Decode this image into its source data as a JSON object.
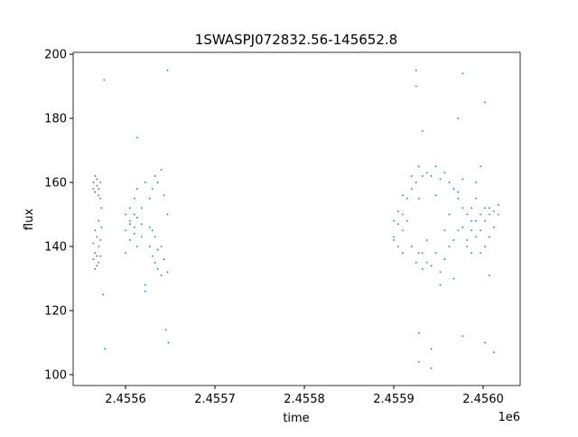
{
  "chart_data": {
    "type": "scatter",
    "title": "1SWASPJ072832.56-145652.8",
    "x_label": "time",
    "y_label": "flux",
    "x_offset_label": "1e6",
    "color": "#1f77b4",
    "x": [
      2455564,
      2455564,
      2455564,
      2455564,
      2455566,
      2455566,
      2455566,
      2455566,
      2455566,
      2455568,
      2455568,
      2455568,
      2455568,
      2455568,
      2455570,
      2455570,
      2455570,
      2455570,
      2455570,
      2455572,
      2455572,
      2455572,
      2455572,
      2455573,
      2455573,
      2455577,
      2455576,
      2455575,
      2455600,
      2455600,
      2455600,
      2455605,
      2455605,
      2455605,
      2455605,
      2455610,
      2455610,
      2455610,
      2455610,
      2455613,
      2455613,
      2455613,
      2455613,
      2455618,
      2455618,
      2455618,
      2455622,
      2455622,
      2455622,
      2455627,
      2455627,
      2455627,
      2455630,
      2455630,
      2455630,
      2455633,
      2455633,
      2455633,
      2455636,
      2455636,
      2455636,
      2455640,
      2455640,
      2455640,
      2455643,
      2455643,
      2455647,
      2455647,
      2455647,
      2455648,
      2455645,
      2455900,
      2455900,
      2455900,
      2455905,
      2455905,
      2455905,
      2455910,
      2455910,
      2455910,
      2455910,
      2455915,
      2455915,
      2455920,
      2455920,
      2455920,
      2455925,
      2455925,
      2455925,
      2455925,
      2455928,
      2455928,
      2455928,
      2455928,
      2455928,
      2455932,
      2455932,
      2455932,
      2455932,
      2455937,
      2455937,
      2455937,
      2455942,
      2455942,
      2455942,
      2455942,
      2455947,
      2455947,
      2455947,
      2455952,
      2455952,
      2455952,
      2455957,
      2455957,
      2455957,
      2455962,
      2455962,
      2455962,
      2455967,
      2455967,
      2455967,
      2455972,
      2455972,
      2455972,
      2455972,
      2455977,
      2455977,
      2455977,
      2455977,
      2455977,
      2455982,
      2455982,
      2455982,
      2455987,
      2455987,
      2455987,
      2455987,
      2455992,
      2455992,
      2455992,
      2455992,
      2455997,
      2455997,
      2455997,
      2455997,
      2456002,
      2456002,
      2456002,
      2456002,
      2456002,
      2456007,
      2456007,
      2456007,
      2456007,
      2456012,
      2456012,
      2456012,
      2456017,
      2456017
    ],
    "values": [
      160,
      158,
      136,
      141,
      162,
      157,
      133,
      138,
      145,
      159,
      161,
      134,
      137,
      143,
      158,
      156,
      135,
      140,
      148,
      155,
      160,
      137,
      142,
      152,
      146,
      108,
      192,
      125,
      138,
      150,
      145,
      142,
      152,
      147,
      148,
      146,
      155,
      150,
      144,
      149,
      140,
      158,
      174,
      152,
      143,
      147,
      160,
      128,
      126,
      155,
      146,
      140,
      158,
      145,
      137,
      162,
      143,
      135,
      160,
      139,
      133,
      164,
      140,
      131,
      156,
      136,
      150,
      132,
      195,
      110,
      114,
      143,
      148,
      142,
      147,
      140,
      151,
      150,
      145,
      138,
      156,
      155,
      148,
      158,
      162,
      140,
      160,
      135,
      190,
      195,
      155,
      138,
      165,
      113,
      104,
      162,
      133,
      138,
      176,
      163,
      135,
      142,
      162,
      134,
      108,
      102,
      165,
      138,
      156,
      161,
      132,
      128,
      163,
      136,
      145,
      160,
      140,
      150,
      158,
      142,
      130,
      157,
      145,
      155,
      180,
      152,
      146,
      161,
      194,
      112,
      150,
      142,
      140,
      152,
      145,
      138,
      148,
      155,
      148,
      143,
      160,
      150,
      145,
      138,
      165,
      148,
      152,
      140,
      185,
      110,
      150,
      143,
      152,
      131,
      151,
      146,
      107,
      150,
      153
    ],
    "xlim": [
      2455541.4,
      2456041.4
    ],
    "ylim": [
      96.6,
      200.6
    ],
    "xticks": [
      {
        "value": 2455600,
        "label": "2.4556"
      },
      {
        "value": 2455700,
        "label": "2.4557"
      },
      {
        "value": 2455800,
        "label": "2.4558"
      },
      {
        "value": 2455900,
        "label": "2.4559"
      },
      {
        "value": 2456000,
        "label": "2.4560"
      }
    ],
    "yticks": [
      100,
      120,
      140,
      160,
      180,
      200
    ]
  }
}
